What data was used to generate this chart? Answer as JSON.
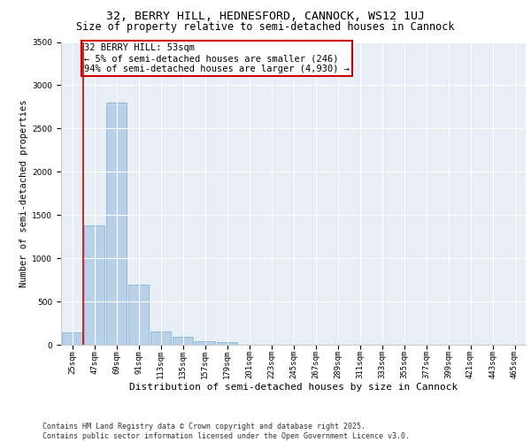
{
  "title_line1": "32, BERRY HILL, HEDNESFORD, CANNOCK, WS12 1UJ",
  "title_line2": "Size of property relative to semi-detached houses in Cannock",
  "xlabel": "Distribution of semi-detached houses by size in Cannock",
  "ylabel": "Number of semi-detached properties",
  "categories": [
    "25sqm",
    "47sqm",
    "69sqm",
    "91sqm",
    "113sqm",
    "135sqm",
    "157sqm",
    "179sqm",
    "201sqm",
    "223sqm",
    "245sqm",
    "267sqm",
    "289sqm",
    "311sqm",
    "333sqm",
    "355sqm",
    "377sqm",
    "399sqm",
    "421sqm",
    "443sqm",
    "465sqm"
  ],
  "values": [
    140,
    1380,
    2800,
    700,
    155,
    90,
    45,
    30,
    0,
    0,
    0,
    0,
    0,
    0,
    0,
    0,
    0,
    0,
    0,
    0,
    0
  ],
  "bar_color": "#b8d0e8",
  "bar_edgecolor": "#7aadd0",
  "annotation_text": "32 BERRY HILL: 53sqm\n← 5% of semi-detached houses are smaller (246)\n94% of semi-detached houses are larger (4,930) →",
  "annotation_box_color": "#cc0000",
  "vline_x": 0.5,
  "ylim": [
    0,
    3500
  ],
  "yticks": [
    0,
    500,
    1000,
    1500,
    2000,
    2500,
    3000,
    3500
  ],
  "background_color": "#e8eef5",
  "footer": "Contains HM Land Registry data © Crown copyright and database right 2025.\nContains public sector information licensed under the Open Government Licence v3.0.",
  "title_fontsize": 9.5,
  "subtitle_fontsize": 8.5,
  "annotation_fontsize": 7.5,
  "ylabel_fontsize": 7.5,
  "xlabel_fontsize": 8,
  "footer_fontsize": 6,
  "tick_fontsize": 6.5
}
